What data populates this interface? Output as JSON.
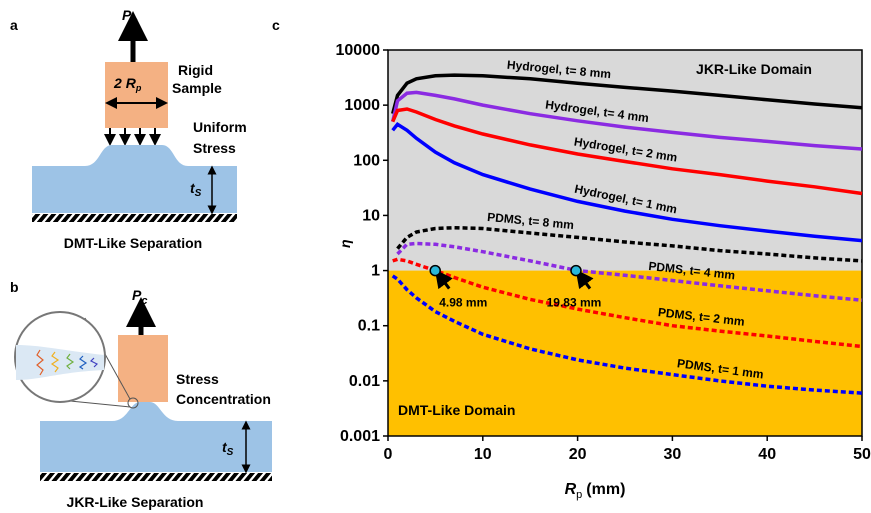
{
  "panel_labels": [
    "a",
    "b",
    "c"
  ],
  "diagrams": {
    "a": {
      "force": {
        "symbol": "P",
        "subscript": "c"
      },
      "width": {
        "prefix": "2 ",
        "symbol": "R",
        "subscript": "p"
      },
      "sample": [
        "Rigid",
        "Sample"
      ],
      "stress": [
        "Uniform",
        "Stress"
      ],
      "thickness": {
        "symbol": "t",
        "subscript": "S"
      },
      "caption": "DMT-Like Separation"
    },
    "b": {
      "force": {
        "symbol": "P",
        "subscript": "c"
      },
      "stress": [
        "Stress",
        "Concentration"
      ],
      "thickness": {
        "symbol": "t",
        "subscript": "S"
      },
      "caption": "JKR-Like Separation"
    }
  },
  "chart_data": {
    "type": "line",
    "xlabel": {
      "symbol": "R",
      "subscript": "p",
      "unit": "(mm)"
    },
    "ylabel": "η",
    "log_y": true,
    "xlim": [
      0,
      50
    ],
    "xticks": [
      0,
      10,
      20,
      30,
      40,
      50
    ],
    "ylim": [
      0.001,
      10000
    ],
    "yticks": [
      10000,
      1000,
      100,
      10,
      1,
      0.1,
      0.01,
      0.001
    ],
    "domain_boundary": 1,
    "domains": [
      {
        "name": "JKR-Like Domain",
        "color": "#d9d9d9"
      },
      {
        "name": "DMT-Like Domain",
        "color": "#ffc000"
      }
    ],
    "x": [
      0.5,
      1,
      2,
      3,
      5,
      7,
      10,
      15,
      20,
      25,
      30,
      35,
      40,
      45,
      50
    ],
    "series": [
      {
        "name": "Hydrogel, t= 8 mm",
        "color": "#000000",
        "dashed": false,
        "values": [
          700,
          1500,
          2500,
          3000,
          3400,
          3500,
          3400,
          3000,
          2500,
          2100,
          1800,
          1500,
          1250,
          1050,
          900
        ]
      },
      {
        "name": "Hydrogel, t= 4 mm",
        "color": "#8b2be2",
        "dashed": false,
        "values": [
          500,
          1200,
          1650,
          1700,
          1500,
          1300,
          1000,
          700,
          520,
          400,
          320,
          260,
          220,
          185,
          160
        ]
      },
      {
        "name": "Hydrogel, t= 2 mm",
        "color": "#ff0000",
        "dashed": false,
        "values": [
          500,
          800,
          850,
          750,
          550,
          420,
          300,
          190,
          130,
          95,
          70,
          55,
          42,
          33,
          25
        ]
      },
      {
        "name": "Hydrogel, t= 1 mm",
        "color": "#0000ff",
        "dashed": false,
        "values": [
          350,
          450,
          350,
          250,
          140,
          90,
          55,
          30,
          18,
          12,
          8.5,
          6.5,
          5.2,
          4.2,
          3.5
        ]
      },
      {
        "name": "PDMS, t= 8 mm",
        "color": "#000000",
        "dashed": true,
        "values": [
          null,
          2.5,
          4,
          5,
          5.8,
          6,
          5.8,
          4.8,
          4,
          3.3,
          2.8,
          2.3,
          2,
          1.7,
          1.5
        ]
      },
      {
        "name": "PDMS, t= 4 mm",
        "color": "#8b2be2",
        "dashed": true,
        "values": [
          null,
          2,
          3,
          3.1,
          3,
          2.7,
          2.2,
          1.5,
          1.0,
          0.82,
          0.66,
          0.53,
          0.43,
          0.35,
          0.29
        ]
      },
      {
        "name": "PDMS, t= 2 mm",
        "color": "#ff0000",
        "dashed": true,
        "values": [
          1.5,
          1.6,
          1.5,
          1.3,
          1.0,
          0.75,
          0.5,
          0.3,
          0.2,
          0.14,
          0.1,
          0.08,
          0.065,
          0.052,
          0.042
        ]
      },
      {
        "name": "PDMS, t= 1 mm",
        "color": "#0000ff",
        "dashed": true,
        "values": [
          0.8,
          0.7,
          0.45,
          0.32,
          0.18,
          0.12,
          0.07,
          0.038,
          0.024,
          0.017,
          0.013,
          0.01,
          0.008,
          0.0068,
          0.006
        ]
      }
    ],
    "annotations": [
      {
        "text": "4.98 mm",
        "x": 4.98,
        "y": 1
      },
      {
        "text": "19.83 mm",
        "x": 19.83,
        "y": 1
      }
    ],
    "marker_color": "#29b6d9"
  }
}
